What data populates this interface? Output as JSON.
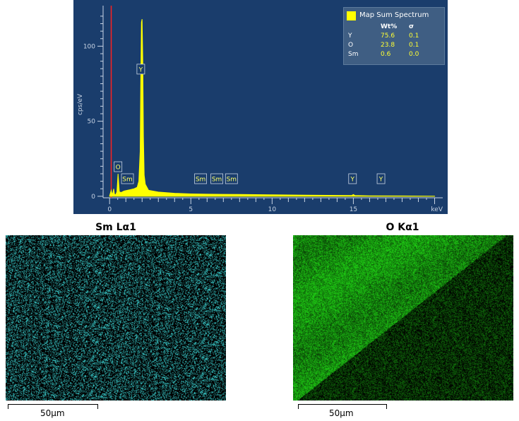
{
  "chart_data": [
    {
      "type": "line",
      "xlabel": "keV",
      "ylabel": "cps/eV",
      "xlim": [
        -0.4,
        20.5
      ],
      "ylim": [
        -1,
        127
      ],
      "x_ticks": [
        0,
        5,
        10,
        15
      ],
      "y_ticks": [
        0,
        50,
        100
      ],
      "grid": false,
      "legend": {
        "placement": "top-right",
        "title": "Map Sum Spectrum"
      },
      "series": [
        {
          "name": "Map Sum Spectrum",
          "color": "#ffff00",
          "x": [
            0.0,
            0.1,
            0.15,
            0.2,
            0.25,
            0.3,
            0.35,
            0.4,
            0.45,
            0.52,
            0.56,
            0.6,
            0.7,
            0.9,
            1.1,
            1.3,
            1.5,
            1.7,
            1.8,
            1.88,
            1.92,
            1.96,
            2.0,
            2.04,
            2.08,
            2.13,
            2.2,
            2.4,
            3.0,
            4.0,
            5.0,
            6.0,
            7.0,
            8.0,
            10.0,
            12.0,
            14.0,
            14.9,
            15.0,
            15.1,
            16.0,
            18.0,
            20.0
          ],
          "y": [
            0.3,
            4,
            1.5,
            2,
            5,
            1.5,
            1,
            1.5,
            3,
            15,
            9,
            3,
            2.5,
            3.5,
            4,
            4.5,
            5,
            6,
            10,
            30,
            80,
            116,
            118,
            90,
            40,
            14,
            8,
            4,
            2.8,
            2,
            1.6,
            1.4,
            1.3,
            1.2,
            1,
            0.8,
            0.6,
            0.5,
            1.2,
            0.5,
            0.3,
            0.2,
            0.1
          ]
        }
      ],
      "annotations": [
        {
          "text": "Y",
          "x": 1.92
        },
        {
          "text": "O",
          "x": 0.52
        },
        {
          "text": "Sm",
          "x": 1.1
        },
        {
          "text": "Sm",
          "x": 5.6
        },
        {
          "text": "Sm",
          "x": 6.6
        },
        {
          "text": "Sm",
          "x": 7.5
        },
        {
          "text": "Y",
          "x": 14.95
        },
        {
          "text": "Y",
          "x": 16.7
        }
      ],
      "marker_line": {
        "x": 0.1,
        "color": "#ff2020"
      }
    }
  ],
  "legend_table": {
    "headers": [
      "",
      "Wt%",
      "σ"
    ],
    "rows": [
      {
        "element": "Y",
        "wt": "75.6",
        "sigma": "0.1"
      },
      {
        "element": "O",
        "wt": "23.8",
        "sigma": "0.1"
      },
      {
        "element": "Sm",
        "wt": "0.6",
        "sigma": "0.0"
      }
    ]
  },
  "maps": [
    {
      "title": "Sm Lα1",
      "color": "#3fe0e0",
      "scale_label": "50µm"
    },
    {
      "title": "O Kα1",
      "color": "#33cc22",
      "scale_label": "50µm"
    }
  ]
}
